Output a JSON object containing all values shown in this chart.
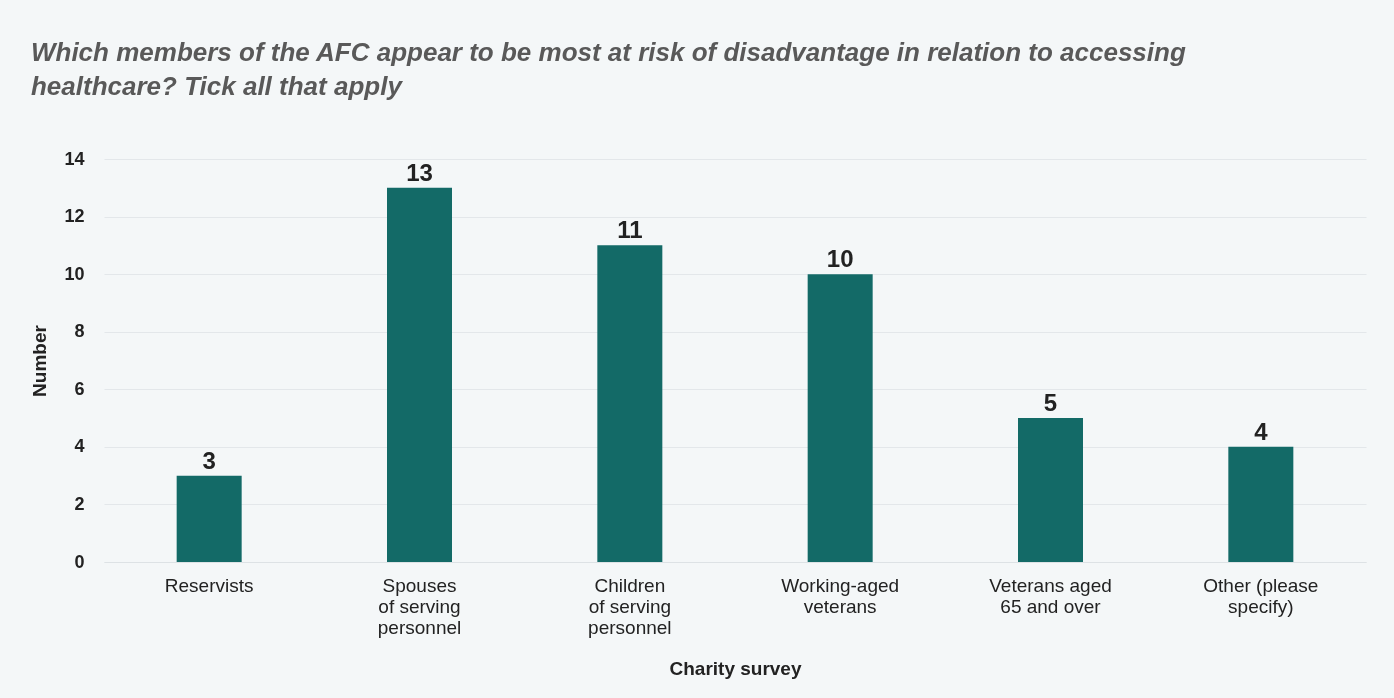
{
  "chart_data": {
    "type": "bar",
    "title": "Which members of the AFC appear to be most at risk of disadvantage in relation to accessing healthcare? Tick all that apply",
    "categories": [
      "Reservists",
      "Spouses\nof serving\npersonnel",
      "Children\nof serving\npersonnel",
      "Working-aged\nveterans",
      "Veterans aged\n65 and over",
      "Other (please\nspecify)"
    ],
    "values": [
      3,
      13,
      11,
      10,
      5,
      4
    ],
    "color": "#136a67",
    "xlabel": "Charity survey",
    "ylabel": "Number",
    "ylim": [
      0,
      14
    ],
    "yticks": [
      0,
      2,
      4,
      6,
      8,
      10,
      12,
      14
    ],
    "grid": "y",
    "data_labels": true
  }
}
